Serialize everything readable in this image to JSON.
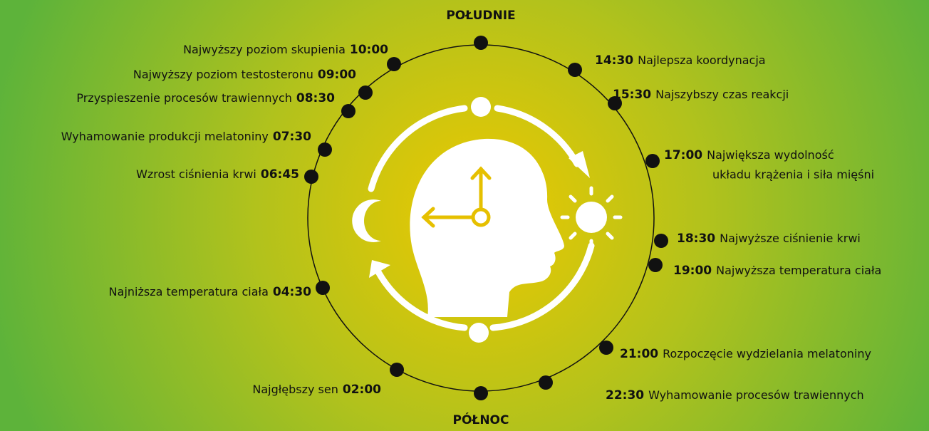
{
  "top_label": "POŁUDNIE",
  "bottom_label": "PÓŁNOC",
  "left_events": [
    {
      "time": "10:00",
      "label": "Najwyższy poziom skupienia"
    },
    {
      "time": "09:00",
      "label": "Najwyższy poziom testosteronu"
    },
    {
      "time": "08:30",
      "label": "Przyspieszenie procesów trawiennych"
    },
    {
      "time": "07:30",
      "label": "Wyhamowanie produkcji melatoniny"
    },
    {
      "time": "06:45",
      "label": "Wzrost ciśnienia krwi"
    },
    {
      "time": "04:30",
      "label": "Najniższa temperatura ciała"
    },
    {
      "time": "02:00",
      "label": "Najgłębszy sen"
    }
  ],
  "right_events": [
    {
      "time": "14:30",
      "label": "Najlepsza koordynacja"
    },
    {
      "time": "15:30",
      "label": "Najszybszy czas reakcji"
    },
    {
      "time": "17:00",
      "label": "Największa wydolność",
      "label2": "układu krążenia i siła mięśni"
    },
    {
      "time": "18:30",
      "label": "Najwyższe ciśnienie krwi"
    },
    {
      "time": "19:00",
      "label": "Najwyższa temperatura ciała"
    },
    {
      "time": "21:00",
      "label": "Rozpoczęcie wydzielania melatoniny"
    },
    {
      "time": "22:30",
      "label": "Wyhamowanie procesów trawiennych"
    }
  ]
}
